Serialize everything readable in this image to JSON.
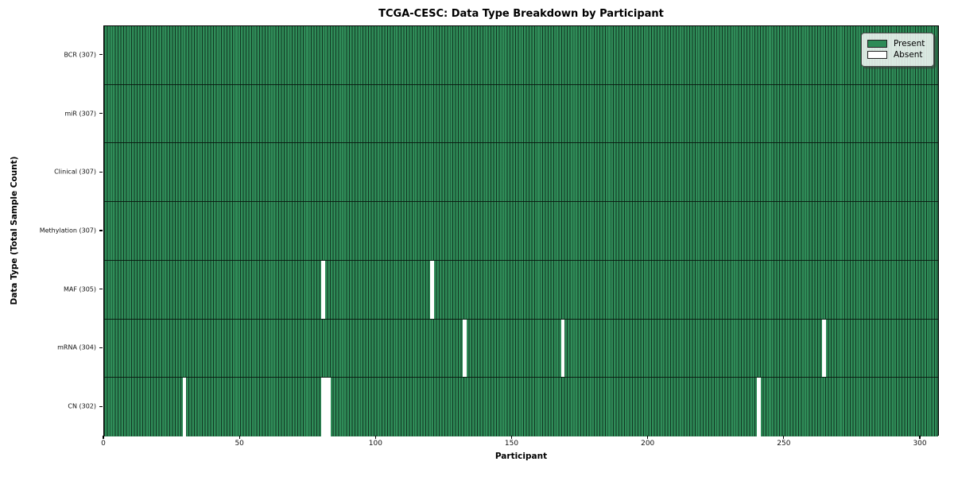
{
  "chart_data": {
    "type": "heatmap",
    "title": "TCGA-CESC: Data Type Breakdown by Participant",
    "xlabel": "Participant",
    "ylabel": "Data Type (Total Sample Count)",
    "x_ticks": [
      0,
      50,
      100,
      150,
      200,
      250,
      300
    ],
    "x_range": [
      0,
      307
    ],
    "n_participants": 307,
    "grid": false,
    "legend_position": "upper right",
    "legend": [
      {
        "label": "Present",
        "color": "#2e8b57"
      },
      {
        "label": "Absent",
        "color": "#ffffff"
      }
    ],
    "rows": [
      {
        "label": "BCR (307)",
        "data_type": "bcr",
        "present_count": 307,
        "absent_participants": []
      },
      {
        "label": "miR (307)",
        "data_type": "mir",
        "present_count": 307,
        "absent_participants": []
      },
      {
        "label": "Clinical (307)",
        "data_type": "clinical",
        "present_count": 307,
        "absent_participants": []
      },
      {
        "label": "Methylation (307)",
        "data_type": "methylation",
        "present_count": 307,
        "absent_participants": []
      },
      {
        "label": "MAF (305)",
        "data_type": "maf",
        "present_count": 305,
        "absent_participants": [
          80,
          120
        ]
      },
      {
        "label": "mRNA (304)",
        "data_type": "mrna",
        "present_count": 304,
        "absent_participants": [
          132,
          168,
          264
        ]
      },
      {
        "label": "CN (302)",
        "data_type": "cn",
        "present_count": 302,
        "absent_participants": [
          29,
          80,
          81,
          82,
          240
        ]
      }
    ],
    "colors": {
      "present": "#2e8b57",
      "absent": "#ffffff",
      "cell_edge": "#0c2618",
      "spine": "#000000",
      "background": "#ffffff"
    }
  }
}
